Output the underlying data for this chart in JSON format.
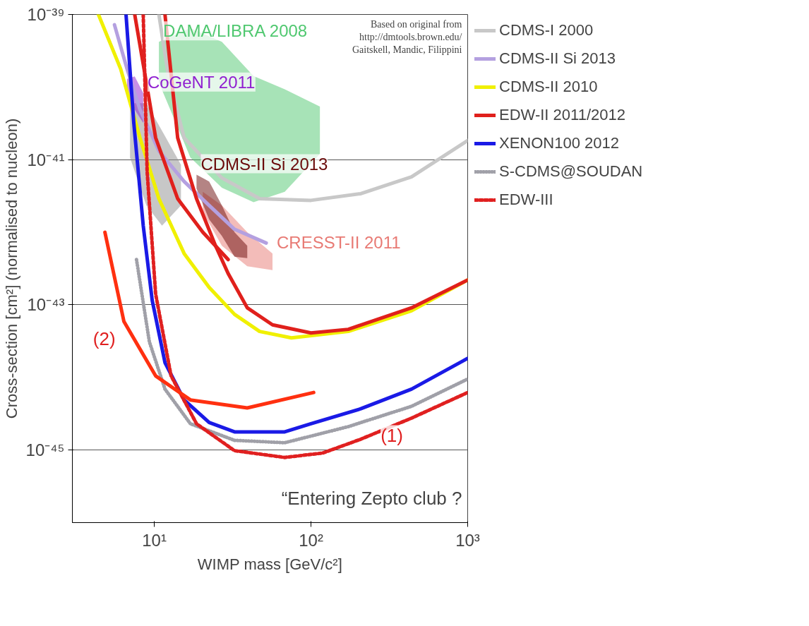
{
  "chart_data": {
    "type": "line",
    "xlabel": "WIMP mass [GeV/c²]",
    "ylabel": "Cross-section [cm²] (normalised to nucleon)",
    "log": "xy",
    "xlim": [
      3,
      1000
    ],
    "ylim": [
      1e-46,
      1e-39
    ],
    "xticks": [
      {
        "value": 10,
        "label": "10¹"
      },
      {
        "value": 100,
        "label": "10²"
      },
      {
        "value": 1000,
        "label": "10³"
      }
    ],
    "yticks": [
      {
        "value": 1e-39,
        "label": "10⁻³⁹"
      },
      {
        "value": 1e-41,
        "label": "10⁻⁴¹"
      },
      {
        "value": 1e-43,
        "label": "10⁻⁴³"
      },
      {
        "value": 1e-45,
        "label": "10⁻⁴⁵"
      }
    ],
    "grid": "y",
    "legend": "right",
    "series": [
      {
        "type": "area",
        "name": "DAMA/LIBRA 2008",
        "color": "#50c870",
        "x": [
          10.7,
          17,
          27,
          43,
          68,
          114,
          114,
          68,
          43,
          27,
          17,
          10.7
        ],
        "values": [
          4.2e-40,
          6.5e-40,
          4.2e-40,
          1.42e-40,
          9.3e-41,
          5.4e-41,
          1.2e-41,
          3.6e-42,
          2.6e-42,
          4.1e-42,
          1.07e-41,
          1.15e-40
        ]
      },
      {
        "type": "area",
        "color": "#909090",
        "x": [
          7.0,
          8.9,
          11.2,
          14.8,
          14.8,
          11.2,
          8.9,
          7.0
        ],
        "values": [
          6e-41,
          6e-41,
          2.5e-41,
          8.5e-42,
          2.34e-42,
          1.23e-42,
          2.34e-42,
          1.07e-41
        ]
      },
      {
        "type": "area",
        "name": "CoGeNT 2011",
        "color": "#9020d0",
        "x": [
          8.5,
          7.5,
          6.7,
          6.7,
          7.5,
          8.5
        ],
        "values": [
          8.3e-41,
          1.4e-40,
          1.3e-40,
          9.3e-41,
          4.9e-41,
          3.2e-41
        ]
      },
      {
        "type": "area",
        "name": "CRESST-II 2011",
        "color": "#e87a74",
        "x": [
          56.8,
          39.2,
          27,
          20.4,
          20.4,
          27,
          39.2,
          56.8
        ],
        "values": [
          5.1e-43,
          1e-42,
          2.34e-42,
          3.6e-42,
          1.9e-42,
          6.5e-43,
          3.4e-43,
          3e-43
        ]
      },
      {
        "type": "area",
        "name": "CDMS-II Si 2013",
        "color": "#6a0a0a",
        "x": [
          18.6,
          22.4,
          27,
          32.5,
          39.2,
          39.2,
          32.5,
          27,
          22.4,
          18.6
        ],
        "values": [
          6.2e-42,
          5e-42,
          2.34e-42,
          1e-42,
          6.5e-43,
          4.4e-43,
          4.6e-43,
          8.9e-43,
          1.5e-42,
          4e-42
        ]
      },
      {
        "name": "CDMS-I 2000",
        "color": "#c8c8c8",
        "x": [
          10.7,
          12.3,
          15.5,
          27,
          47,
          100,
          208,
          438,
          1000
        ],
        "values": [
          1e-39,
          1.43e-40,
          2e-41,
          5.6e-42,
          2.9e-42,
          2.75e-42,
          3.4e-42,
          5.8e-42,
          1.83e-41
        ]
      },
      {
        "name": "CDMS-II Si 2013",
        "color": "#b4a0e0",
        "x": [
          5.57,
          6.7,
          8.1,
          10.7,
          15.5,
          22.4,
          32.5,
          51.8
        ],
        "values": [
          7.2e-40,
          1.78e-40,
          4.9e-41,
          1.32e-41,
          5e-42,
          2.34e-42,
          1.1e-42,
          7.1e-43
        ]
      },
      {
        "name": "CDMS-II 2010",
        "color": "#f0f000",
        "x": [
          4.4,
          6.1,
          8.1,
          10.7,
          15.5,
          22.4,
          32.5,
          47,
          75,
          173,
          438,
          1000
        ],
        "values": [
          1e-39,
          1.78e-40,
          2e-41,
          2.9e-42,
          5.1e-43,
          1.74e-43,
          7.4e-44,
          4.3e-44,
          3.5e-44,
          4.3e-44,
          8.3e-44,
          2.2e-43
        ]
      },
      {
        "name": "EDW-II 2011/2012",
        "color": "#e0201c",
        "x": [
          11.7,
          14.1,
          18.6,
          24.6,
          29.6,
          39.2,
          56.8,
          100,
          173,
          438,
          1000
        ],
        "values": [
          1e-39,
          2e-41,
          2.9e-42,
          6.5e-43,
          2.7e-43,
          9.1e-44,
          5.3e-44,
          4.1e-44,
          4.6e-44,
          9.1e-44,
          2.2e-43
        ]
      },
      {
        "color": "#e0201c",
        "x": [
          7.5,
          8.9,
          10.2,
          14.1,
          20.4,
          29.6
        ],
        "values": [
          1e-39,
          1.15e-40,
          2e-41,
          2.9e-42,
          1e-42,
          4.2e-43
        ]
      },
      {
        "name": "XENON100 2012",
        "color": "#1a1ae6",
        "x": [
          6.6,
          7.4,
          8.5,
          9.7,
          11.7,
          15.5,
          22.4,
          32.5,
          68,
          100,
          208,
          438,
          1000
        ],
        "values": [
          1e-39,
          3.2e-41,
          1.23e-42,
          1.15e-43,
          1.6e-44,
          4.9e-45,
          2.4e-45,
          1.78e-45,
          1.78e-45,
          2.3e-45,
          3.7e-45,
          6.9e-45,
          1.83e-44
        ]
      },
      {
        "name": "S-CDMS@SOUDAN",
        "color": "#a0a0a8",
        "line_style": "dotted",
        "x": [
          7.7,
          9.3,
          11.7,
          17,
          32.5,
          68,
          173,
          438,
          1000
        ],
        "values": [
          4.2e-43,
          3.1e-44,
          6.9e-45,
          2.3e-45,
          1.36e-45,
          1.26e-45,
          2.1e-45,
          4e-45,
          9.5e-45
        ]
      },
      {
        "name": "EDW-III",
        "color": "#e02020",
        "line_style": "dashed",
        "x": [
          8.5,
          9.0,
          10.2,
          12.8,
          18.6,
          32.5,
          68,
          119,
          208,
          438,
          1000
        ],
        "values": [
          1e-39,
          6.9e-42,
          1.41e-43,
          1.05e-44,
          2.3e-45,
          9.8e-46,
          7.9e-46,
          9.1e-46,
          1.41e-45,
          2.75e-45,
          6.2e-45
        ]
      },
      {
        "color": "#ff3010",
        "x": [
          4.84,
          6.4,
          10.2,
          17,
          39.2,
          104
        ],
        "values": [
          1e-42,
          5.9e-44,
          1.05e-44,
          4.9e-45,
          3.8e-45,
          6.2e-45
        ]
      }
    ],
    "annotations": [
      "Based on original from\nhttp://dmtools.brown.edu/\nGaitskell, Mandic, Filippini",
      {
        "text": "(1)",
        "x": 438,
        "y": 2.75e-45
      },
      {
        "text": "(2)",
        "x": 6.4,
        "y": 5.9e-44
      },
      "“Entering Zepto club ?"
    ]
  }
}
